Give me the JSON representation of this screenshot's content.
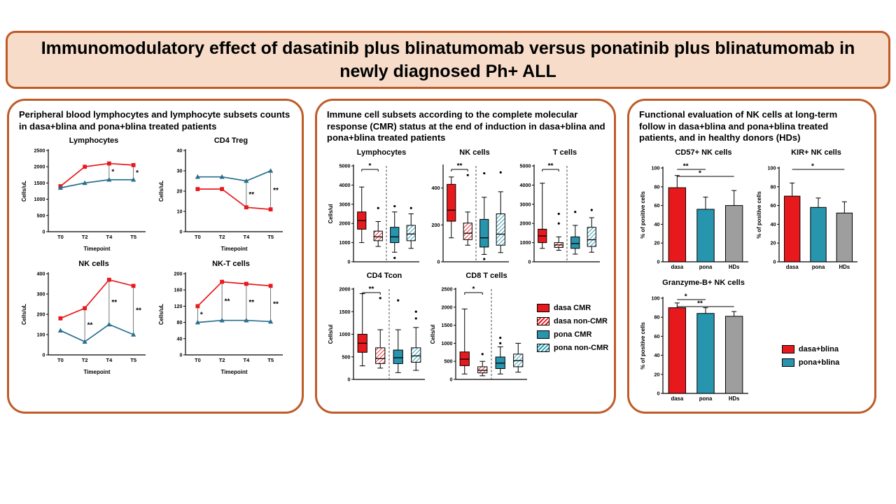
{
  "title": "Immunomodulatory effect of dasatinib plus blinatumomab versus ponatinib plus blinatumomab in newly diagnosed Ph+ ALL",
  "colors": {
    "dasa": "#e8191c",
    "pona": "#2695ad",
    "pona_line": "#2a6f8e",
    "hd": "#9e9e9e",
    "panel_border": "#bf5b27",
    "banner_bg": "#f6dcc9"
  },
  "panels": [
    {
      "heading": "Peripheral blood lymphocytes and lymphocyte subsets counts in dasa+blina and pona+blina treated patients"
    },
    {
      "heading": "Immune cell subsets according to the complete molecular response (CMR) status at the end of induction in dasa+blina and pona+blina treated patients"
    },
    {
      "heading": "Functional evaluation of NK cells at long-term follow in dasa+blina and pona+blina treated patients, and in healthy donors (HDs)"
    }
  ],
  "legend_cmr": {
    "items": [
      {
        "label": "dasa CMR",
        "swatch": "dasa-solid"
      },
      {
        "label": "dasa non-CMR",
        "swatch": "dasa-hatch"
      },
      {
        "label": "pona CMR",
        "swatch": "pona-solid"
      },
      {
        "label": "pona non-CMR",
        "swatch": "pona-hatch"
      }
    ]
  },
  "legend_treatment": {
    "items": [
      {
        "label": "dasa+blina",
        "swatch": "dasa-solid"
      },
      {
        "label": "pona+blina",
        "swatch": "pona-solid"
      }
    ]
  },
  "chart_data": [
    {
      "id": "lymphocytes-line",
      "type": "line",
      "title": "Lymphocytes",
      "xlabel": "Timepoint",
      "ylabel": "Cells/uL",
      "categories": [
        "T0",
        "T2",
        "T4",
        "T5"
      ],
      "ylim": [
        0,
        2500
      ],
      "yticks": [
        0,
        500,
        1000,
        1500,
        2000,
        2500
      ],
      "series": [
        {
          "name": "dasa+blina",
          "color": "dasa",
          "marker": "square",
          "values": [
            1400,
            2000,
            2100,
            2050
          ]
        },
        {
          "name": "pona+blina",
          "color": "pona_line",
          "marker": "triangle",
          "values": [
            1350,
            1500,
            1600,
            1600
          ]
        }
      ],
      "annotations": [
        {
          "xi": 2,
          "text": "*"
        },
        {
          "xi": 3,
          "text": "*"
        }
      ]
    },
    {
      "id": "cd4treg-line",
      "type": "line",
      "title": "CD4 Treg",
      "xlabel": "Timepoint",
      "ylabel": "Cells/uL",
      "categories": [
        "T0",
        "T2",
        "T4",
        "T5"
      ],
      "ylim": [
        0,
        40
      ],
      "yticks": [
        0,
        10,
        20,
        30,
        40
      ],
      "series": [
        {
          "name": "dasa+blina",
          "color": "dasa",
          "marker": "square",
          "values": [
            21,
            21,
            12,
            11
          ]
        },
        {
          "name": "pona+blina",
          "color": "pona_line",
          "marker": "triangle",
          "values": [
            27,
            27,
            25,
            30
          ]
        }
      ],
      "annotations": [
        {
          "xi": 2,
          "text": "**"
        },
        {
          "xi": 3,
          "text": "**"
        }
      ]
    },
    {
      "id": "nk-line",
      "type": "line",
      "title": "NK cells",
      "xlabel": "Timepoint",
      "ylabel": "Cells/uL",
      "categories": [
        "T0",
        "T2",
        "T4",
        "T5"
      ],
      "ylim": [
        0,
        400
      ],
      "yticks": [
        0,
        100,
        200,
        300,
        400
      ],
      "series": [
        {
          "name": "dasa+blina",
          "color": "dasa",
          "marker": "square",
          "values": [
            180,
            230,
            370,
            340
          ]
        },
        {
          "name": "pona+blina",
          "color": "pona_line",
          "marker": "triangle",
          "values": [
            120,
            65,
            150,
            100
          ]
        }
      ],
      "annotations": [
        {
          "xi": 1,
          "text": "**"
        },
        {
          "xi": 2,
          "text": "**"
        },
        {
          "xi": 3,
          "text": "**"
        }
      ]
    },
    {
      "id": "nkt-line",
      "type": "line",
      "title": "NK-T cells",
      "xlabel": "Timepoint",
      "ylabel": "Cells/uL",
      "categories": [
        "T0",
        "T2",
        "T4",
        "T5"
      ],
      "ylim": [
        0,
        200
      ],
      "yticks": [
        0,
        40,
        80,
        120,
        160,
        200
      ],
      "series": [
        {
          "name": "dasa+blina",
          "color": "dasa",
          "marker": "square",
          "values": [
            120,
            180,
            175,
            170
          ]
        },
        {
          "name": "pona+blina",
          "color": "pona_line",
          "marker": "triangle",
          "values": [
            80,
            85,
            85,
            82
          ]
        }
      ],
      "annotations": [
        {
          "xi": 0,
          "text": "*"
        },
        {
          "xi": 1,
          "text": "**"
        },
        {
          "xi": 2,
          "text": "**"
        },
        {
          "xi": 3,
          "text": "**"
        }
      ]
    },
    {
      "id": "lymphocytes-box",
      "type": "box",
      "title": "Lymphocytes",
      "ylabel": "Cells/ul",
      "ylim": [
        0,
        5000
      ],
      "yticks": [
        0,
        1000,
        2000,
        3000,
        4000,
        5000
      ],
      "groups": [
        "dasa CMR",
        "dasa non-CMR",
        "pona CMR",
        "pona non-CMR"
      ],
      "boxes": [
        {
          "style": "dasa-solid",
          "low": 1000,
          "q1": 1700,
          "median": 2150,
          "q3": 2600,
          "high": 3900,
          "outliers": []
        },
        {
          "style": "dasa-hatch",
          "low": 800,
          "q1": 1100,
          "median": 1300,
          "q3": 1600,
          "high": 2100,
          "outliers": [
            2800
          ]
        },
        {
          "style": "pona-solid",
          "low": 500,
          "q1": 1000,
          "median": 1300,
          "q3": 1800,
          "high": 2600,
          "outliers": [
            2900,
            200
          ]
        },
        {
          "style": "pona-hatch",
          "low": 700,
          "q1": 1100,
          "median": 1450,
          "q3": 1900,
          "high": 2500,
          "outliers": [
            2800
          ]
        }
      ],
      "sig": {
        "from": 0,
        "to": 1,
        "text": "*"
      },
      "divider_after": 1
    },
    {
      "id": "nk-box",
      "type": "box",
      "title": "NK cells",
      "ylabel": "",
      "ylim": [
        0,
        520
      ],
      "yticks": [
        0,
        200,
        400
      ],
      "groups": [
        "dasa CMR",
        "dasa non-CMR",
        "pona CMR",
        "pona non-CMR"
      ],
      "boxes": [
        {
          "style": "dasa-solid",
          "low": 130,
          "q1": 220,
          "median": 280,
          "q3": 420,
          "high": 460,
          "outliers": []
        },
        {
          "style": "dasa-hatch",
          "low": 90,
          "q1": 120,
          "median": 155,
          "q3": 210,
          "high": 270,
          "outliers": [
            470
          ]
        },
        {
          "style": "pona-solid",
          "low": 40,
          "q1": 80,
          "median": 130,
          "q3": 230,
          "high": 350,
          "outliers": [
            480,
            15
          ]
        },
        {
          "style": "pona-hatch",
          "low": 50,
          "q1": 90,
          "median": 150,
          "q3": 260,
          "high": 380,
          "outliers": [
            485
          ]
        }
      ],
      "sig": {
        "from": 0,
        "to": 1,
        "text": "**"
      },
      "divider_after": 1
    },
    {
      "id": "tcells-box",
      "type": "box",
      "title": "T cells",
      "ylabel": "",
      "ylim": [
        0,
        5000
      ],
      "yticks": [
        0,
        1000,
        2000,
        3000,
        4000,
        5000
      ],
      "groups": [
        "dasa CMR",
        "dasa non-CMR",
        "pona CMR",
        "pona non-CMR"
      ],
      "boxes": [
        {
          "style": "dasa-solid",
          "low": 700,
          "q1": 1000,
          "median": 1350,
          "q3": 1700,
          "high": 4100,
          "outliers": []
        },
        {
          "style": "dasa-hatch",
          "low": 600,
          "q1": 750,
          "median": 880,
          "q3": 1000,
          "high": 1300,
          "outliers": [
            2500,
            2000
          ]
        },
        {
          "style": "pona-solid",
          "low": 400,
          "q1": 700,
          "median": 950,
          "q3": 1300,
          "high": 1900,
          "outliers": [
            2600
          ]
        },
        {
          "style": "pona-hatch",
          "low": 500,
          "q1": 800,
          "median": 1150,
          "q3": 1800,
          "high": 2300,
          "outliers": [
            2700
          ]
        }
      ],
      "sig": {
        "from": 0,
        "to": 1,
        "text": "**"
      },
      "divider_after": 1
    },
    {
      "id": "cd4tcon-box",
      "type": "box",
      "title": "CD4 Tcon",
      "ylabel": "Cells/ul",
      "ylim": [
        0,
        2000
      ],
      "yticks": [
        0,
        500,
        1000,
        1500,
        2000
      ],
      "groups": [
        "dasa CMR",
        "dasa non-CMR",
        "pona CMR",
        "pona non-CMR"
      ],
      "boxes": [
        {
          "style": "dasa-solid",
          "low": 300,
          "q1": 600,
          "median": 800,
          "q3": 1000,
          "high": 1900,
          "outliers": []
        },
        {
          "style": "dasa-hatch",
          "low": 250,
          "q1": 350,
          "median": 460,
          "q3": 700,
          "high": 1100,
          "outliers": [
            1800
          ]
        },
        {
          "style": "pona-solid",
          "low": 150,
          "q1": 350,
          "median": 480,
          "q3": 650,
          "high": 1100,
          "outliers": [
            1750
          ]
        },
        {
          "style": "pona-hatch",
          "low": 200,
          "q1": 380,
          "median": 520,
          "q3": 700,
          "high": 1150,
          "outliers": [
            1500,
            1350
          ]
        }
      ],
      "sig": {
        "from": 0,
        "to": 1,
        "text": "**"
      },
      "divider_after": 1
    },
    {
      "id": "cd8-box",
      "type": "box",
      "title": "CD8 T cells",
      "ylabel": "Cells/ul",
      "ylim": [
        0,
        2500
      ],
      "yticks": [
        0,
        500,
        1000,
        1500,
        2000,
        2500
      ],
      "groups": [
        "dasa CMR",
        "dasa non-CMR",
        "pona CMR",
        "pona non-CMR"
      ],
      "boxes": [
        {
          "style": "dasa-solid",
          "low": 150,
          "q1": 380,
          "median": 560,
          "q3": 760,
          "high": 1950,
          "outliers": []
        },
        {
          "style": "dasa-hatch",
          "low": 100,
          "q1": 180,
          "median": 250,
          "q3": 350,
          "high": 500,
          "outliers": [
            700
          ]
        },
        {
          "style": "pona-solid",
          "low": 150,
          "q1": 300,
          "median": 450,
          "q3": 620,
          "high": 900,
          "outliers": [
            1150,
            1000
          ]
        },
        {
          "style": "pona-hatch",
          "low": 200,
          "q1": 350,
          "median": 520,
          "q3": 700,
          "high": 1000,
          "outliers": []
        }
      ],
      "sig": {
        "from": 0,
        "to": 1,
        "text": "*"
      },
      "divider_after": 1
    },
    {
      "id": "cd57-bar",
      "type": "bar",
      "title": "CD57+ NK cells",
      "ylabel": "% of positive cells",
      "categories": [
        "dasa",
        "pona",
        "HDs"
      ],
      "ylim": [
        0,
        100
      ],
      "yticks": [
        0,
        20,
        40,
        60,
        80,
        100
      ],
      "values": [
        79,
        56,
        60
      ],
      "errors": [
        13,
        13,
        16
      ],
      "colors": [
        "dasa",
        "pona",
        "hd"
      ],
      "annotations": [
        {
          "from": 0,
          "to": 1,
          "text": "**",
          "row": 0
        },
        {
          "from": 0,
          "to": 2,
          "text": "*",
          "row": 1
        }
      ]
    },
    {
      "id": "kir-bar",
      "type": "bar",
      "title": "KIR+ NK cells",
      "ylabel": "% of positive cells",
      "categories": [
        "dasa",
        "pona",
        "HDs"
      ],
      "ylim": [
        0,
        100
      ],
      "yticks": [
        0,
        20,
        40,
        60,
        80,
        100
      ],
      "values": [
        70,
        58,
        52
      ],
      "errors": [
        14,
        10,
        12
      ],
      "colors": [
        "dasa",
        "pona",
        "hd"
      ],
      "annotations": [
        {
          "from": 0,
          "to": 2,
          "text": "*",
          "row": 0
        }
      ]
    },
    {
      "id": "granzyme-bar",
      "type": "bar",
      "title": "Granzyme-B+ NK cells",
      "ylabel": "% of positive cells",
      "categories": [
        "dasa",
        "pona",
        "HDs"
      ],
      "ylim": [
        0,
        100
      ],
      "yticks": [
        0,
        20,
        40,
        60,
        80,
        100
      ],
      "values": [
        90,
        84,
        81
      ],
      "errors": [
        5,
        6,
        5
      ],
      "colors": [
        "dasa",
        "pona",
        "hd"
      ],
      "annotations": [
        {
          "from": 0,
          "to": 1,
          "text": "*",
          "row": 0
        },
        {
          "from": 0,
          "to": 2,
          "text": "**",
          "row": 1
        }
      ]
    }
  ]
}
